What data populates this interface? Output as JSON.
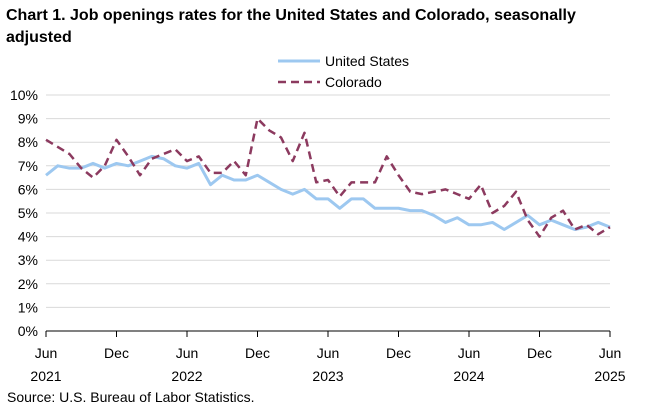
{
  "chart_data": {
    "type": "line",
    "title": "Chart 1. Job openings rates for the United States and Colorado, seasonally adjusted",
    "source": "Source: U.S. Bureau of Labor Statistics.",
    "xlabel": "",
    "ylabel": "",
    "ylim": [
      0,
      10
    ],
    "yticks": [
      "0%",
      "1%",
      "2%",
      "3%",
      "4%",
      "5%",
      "6%",
      "7%",
      "8%",
      "9%",
      "10%"
    ],
    "xticks": [
      {
        "index": 0,
        "month": "Jun",
        "year": "2021"
      },
      {
        "index": 6,
        "month": "Dec",
        "year": ""
      },
      {
        "index": 12,
        "month": "Jun",
        "year": "2022"
      },
      {
        "index": 18,
        "month": "Dec",
        "year": ""
      },
      {
        "index": 24,
        "month": "Jun",
        "year": "2023"
      },
      {
        "index": 30,
        "month": "Dec",
        "year": ""
      },
      {
        "index": 36,
        "month": "Jun",
        "year": "2024"
      },
      {
        "index": 42,
        "month": "Dec",
        "year": ""
      },
      {
        "index": 48,
        "month": "Jun",
        "year": "2025"
      }
    ],
    "legend": "top-center",
    "series": [
      {
        "name": "United States",
        "color": "#9dc8f0",
        "dash": "solid",
        "values": [
          6.6,
          7.0,
          6.9,
          6.9,
          7.1,
          6.9,
          7.1,
          7.0,
          7.2,
          7.4,
          7.3,
          7.0,
          6.9,
          7.1,
          6.2,
          6.6,
          6.4,
          6.4,
          6.6,
          6.3,
          6.0,
          5.8,
          6.0,
          5.6,
          5.6,
          5.2,
          5.6,
          5.6,
          5.2,
          5.2,
          5.2,
          5.1,
          5.1,
          4.9,
          4.6,
          4.8,
          4.5,
          4.5,
          4.6,
          4.3,
          4.6,
          4.9,
          4.5,
          4.7,
          4.5,
          4.3,
          4.4,
          4.6,
          4.4
        ]
      },
      {
        "name": "Colorado",
        "color": "#8c3a5f",
        "dash": "dashed",
        "values": [
          8.1,
          7.8,
          7.5,
          6.9,
          6.5,
          7.0,
          8.1,
          7.4,
          6.6,
          7.3,
          7.5,
          7.7,
          7.2,
          7.4,
          6.7,
          6.7,
          7.2,
          6.6,
          9.0,
          8.5,
          8.2,
          7.2,
          8.4,
          6.3,
          6.4,
          5.7,
          6.3,
          6.3,
          6.3,
          7.4,
          6.6,
          5.9,
          5.8,
          5.9,
          6.0,
          5.8,
          5.6,
          6.2,
          5.0,
          5.3,
          5.9,
          4.7,
          4.0,
          4.8,
          5.1,
          4.3,
          4.5,
          4.1,
          4.4
        ]
      }
    ]
  }
}
